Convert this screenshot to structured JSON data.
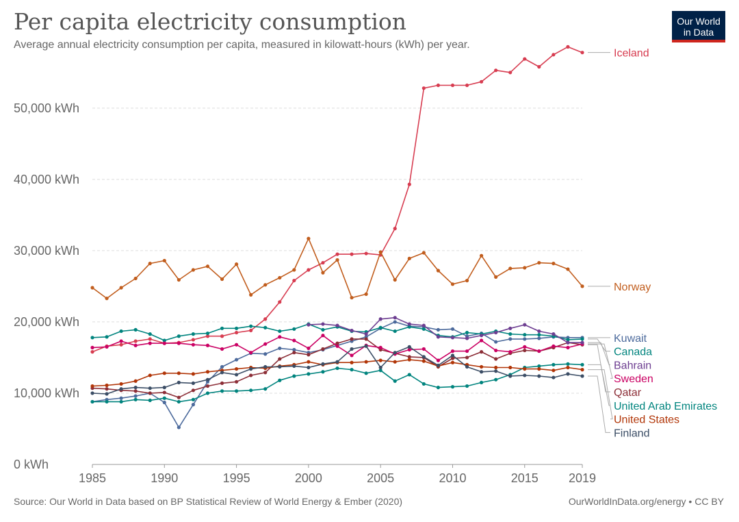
{
  "header": {
    "title": "Per capita electricity consumption",
    "subtitle": "Average annual electricity consumption per capita, measured in kilowatt-hours (kWh) per year.",
    "logo_line1": "Our World",
    "logo_line2": "in Data"
  },
  "footer": {
    "source": "Source: Our World in Data based on BP Statistical Review of World Energy & Ember (2020)",
    "credit": "OurWorldInData.org/energy • CC BY"
  },
  "chart_data": {
    "type": "line",
    "title": "Per capita electricity consumption",
    "subtitle": "Average annual electricity consumption per capita, measured in kilowatt-hours (kWh) per year.",
    "xlim": [
      1985,
      2019
    ],
    "ylim": [
      0,
      57000
    ],
    "x_ticks": [
      1985,
      1990,
      1995,
      2000,
      2005,
      2010,
      2015,
      2019
    ],
    "y_ticks": [
      0,
      10000,
      20000,
      30000,
      40000,
      50000
    ],
    "y_tick_labels": [
      "0 kWh",
      "10,000 kWh",
      "20,000 kWh",
      "30,000 kWh",
      "40,000 kWh",
      "50,000 kWh"
    ],
    "grid": "horizontal dashed",
    "legend": "right",
    "x": [
      1985,
      1986,
      1987,
      1988,
      1989,
      1990,
      1991,
      1992,
      1993,
      1994,
      1995,
      1996,
      1997,
      1998,
      1999,
      2000,
      2001,
      2002,
      2003,
      2004,
      2005,
      2006,
      2007,
      2008,
      2009,
      2010,
      2011,
      2012,
      2013,
      2014,
      2015,
      2016,
      2017,
      2018,
      2019
    ],
    "series": [
      {
        "name": "Iceland",
        "color": "#d73c50",
        "values": [
          15800,
          16600,
          16800,
          17300,
          17600,
          17000,
          17100,
          17500,
          18000,
          18000,
          18500,
          18800,
          20400,
          22800,
          25800,
          27300,
          28300,
          29500,
          29500,
          29600,
          29400,
          33100,
          39300,
          52800,
          53200,
          53200,
          53200,
          53700,
          55300,
          55000,
          56900,
          55800,
          57500,
          58600,
          57800
        ]
      },
      {
        "name": "Norway",
        "color": "#c15d1d",
        "values": [
          24800,
          23300,
          24800,
          26100,
          28200,
          28600,
          25900,
          27300,
          27800,
          26000,
          28100,
          23800,
          25200,
          26200,
          27300,
          31700,
          26900,
          28700,
          23400,
          23900,
          29800,
          25900,
          28900,
          29700,
          27200,
          25300,
          25800,
          29300,
          26300,
          27500,
          27600,
          28300,
          28200,
          27400,
          25000
        ]
      },
      {
        "name": "Kuwait",
        "color": "#4c6a9c",
        "values": [
          8800,
          9100,
          9300,
          9600,
          10000,
          8700,
          5200,
          8400,
          11600,
          13700,
          14700,
          15600,
          15500,
          16300,
          16100,
          15700,
          16100,
          16700,
          17300,
          17900,
          19100,
          20000,
          19400,
          19300,
          18900,
          19000,
          18000,
          18400,
          17200,
          17600,
          17600,
          17700,
          17900,
          17800,
          17800
        ]
      },
      {
        "name": "Canada",
        "color": "#00847e",
        "values": [
          17800,
          17900,
          18700,
          18900,
          18300,
          17400,
          18000,
          18300,
          18400,
          19100,
          19100,
          19400,
          19200,
          18700,
          19000,
          19700,
          18900,
          19300,
          18700,
          18600,
          19200,
          18700,
          19300,
          19000,
          18100,
          17900,
          18500,
          18300,
          18700,
          18300,
          18200,
          18200,
          18000,
          17500,
          17600
        ]
      },
      {
        "name": "Qatar",
        "color": "#8c2e37",
        "values": [
          10700,
          10600,
          10400,
          10300,
          10000,
          10100,
          9400,
          10400,
          11000,
          11400,
          11600,
          12500,
          12900,
          14800,
          15700,
          15400,
          16200,
          17000,
          17600,
          17600,
          16100,
          15600,
          15100,
          15000,
          13700,
          14900,
          15000,
          15800,
          14800,
          15600,
          16000,
          15900,
          16400,
          17100,
          16800
        ]
      },
      {
        "name": "Sweden",
        "color": "#ca0063",
        "values": [
          16400,
          16500,
          17300,
          16700,
          17000,
          17000,
          17000,
          16800,
          16700,
          16200,
          16800,
          15700,
          16900,
          17900,
          17400,
          16300,
          18100,
          16600,
          15300,
          16700,
          16400,
          15500,
          16100,
          16200,
          14600,
          15900,
          15900,
          17400,
          16000,
          15800,
          16500,
          15900,
          16600,
          16400,
          16900
        ]
      },
      {
        "name": "Bahrain",
        "color": "#6d3e91",
        "values": [
          null,
          null,
          null,
          null,
          null,
          null,
          null,
          null,
          null,
          null,
          null,
          null,
          null,
          null,
          null,
          19600,
          19700,
          19500,
          18800,
          18300,
          20400,
          20600,
          19700,
          19500,
          17900,
          17800,
          17700,
          18100,
          18500,
          19100,
          19600,
          18700,
          18300,
          17100,
          17100
        ]
      },
      {
        "name": "United Arab Emirates",
        "color": "#00847e",
        "values": [
          8800,
          8800,
          8800,
          9100,
          9000,
          9300,
          8800,
          9100,
          10000,
          10300,
          10300,
          10400,
          10600,
          11800,
          12400,
          12700,
          13000,
          13500,
          13300,
          12800,
          13200,
          11700,
          12600,
          11300,
          10800,
          10900,
          11000,
          11500,
          11900,
          12600,
          13600,
          13800,
          14000,
          14100,
          14000
        ]
      },
      {
        "name": "United States",
        "color": "#b13507",
        "values": [
          11000,
          11100,
          11300,
          11700,
          12500,
          12800,
          12800,
          12700,
          13000,
          13200,
          13400,
          13600,
          13500,
          13800,
          14000,
          14400,
          14000,
          14300,
          14300,
          14400,
          14600,
          14400,
          14700,
          14500,
          13800,
          14300,
          14000,
          13700,
          13600,
          13600,
          13400,
          13400,
          13200,
          13600,
          13300
        ]
      },
      {
        "name": "Finland",
        "color": "#3c4e66",
        "values": [
          10000,
          9900,
          10600,
          10800,
          10700,
          10800,
          11500,
          11400,
          11900,
          12900,
          12600,
          13400,
          13700,
          13700,
          13800,
          13600,
          14100,
          14400,
          16200,
          16600,
          13600,
          15700,
          16500,
          15100,
          13900,
          15300,
          13700,
          13000,
          13100,
          12400,
          12500,
          12400,
          12200,
          12700,
          12400
        ]
      }
    ]
  }
}
